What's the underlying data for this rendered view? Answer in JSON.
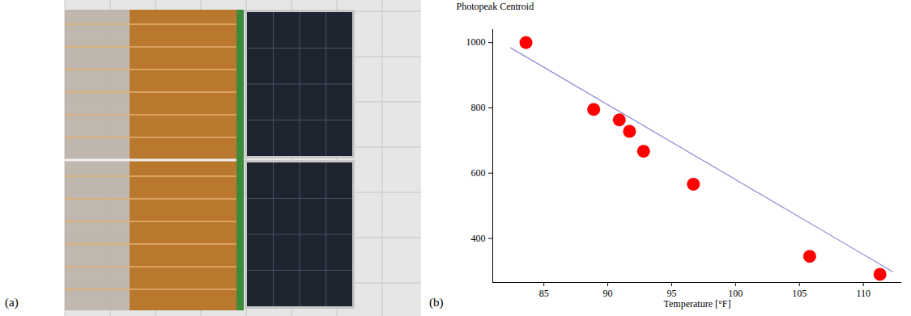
{
  "photo": {
    "panel_label": "(a)"
  },
  "chart_data": {
    "type": "scatter",
    "panel_label": "(b)",
    "y_label": "Photopeak Centroid",
    "x_label": "Temperature [°F]",
    "xlim": [
      81,
      113
    ],
    "ylim": [
      265,
      1040
    ],
    "xticks": [
      85,
      90,
      95,
      100,
      105,
      110
    ],
    "yticks": [
      400,
      600,
      800,
      1000
    ],
    "grid": false,
    "series": [
      {
        "type": "scatter",
        "color": "#ff0000",
        "marker": "circle",
        "x": [
          83.6,
          88.9,
          90.9,
          91.7,
          92.8,
          96.7,
          105.8,
          111.3
        ],
        "values": [
          1000,
          795,
          763,
          728,
          667,
          566,
          345,
          290
        ]
      },
      {
        "type": "line",
        "color": "#8e8ed6",
        "line_style": "solid",
        "x": [
          82.4,
          112.3
        ],
        "values": [
          984,
          298
        ]
      }
    ]
  }
}
